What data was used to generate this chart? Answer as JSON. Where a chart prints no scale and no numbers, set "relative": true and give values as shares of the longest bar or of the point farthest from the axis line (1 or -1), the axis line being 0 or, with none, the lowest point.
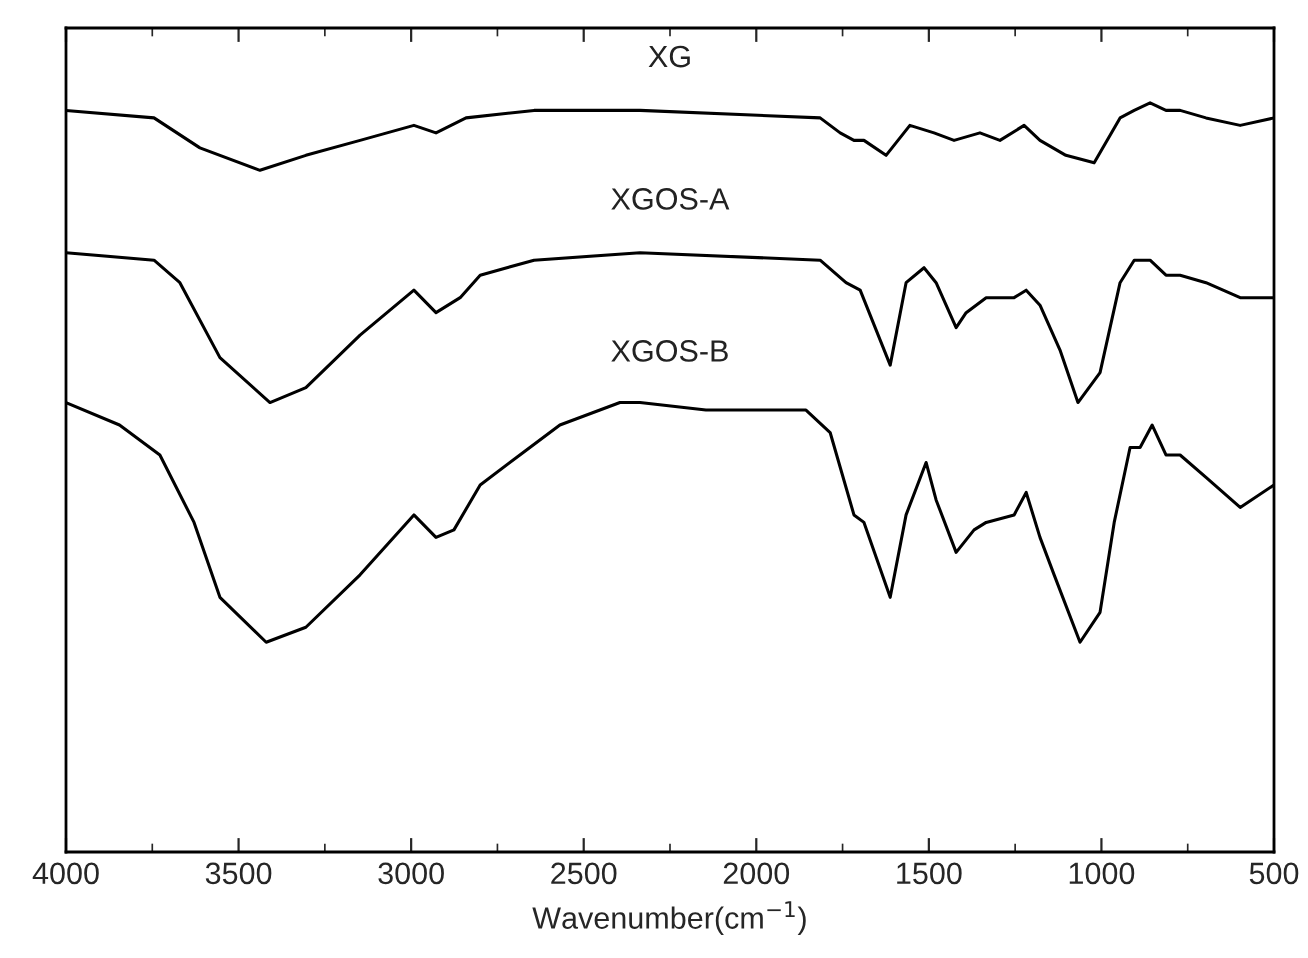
{
  "chart_data": {
    "type": "line",
    "relative": true,
    "xlabel": "Wavenumber(cm$^{−1}$)",
    "xlim": [
      4000,
      500
    ],
    "xticks": [
      4000,
      3500,
      3000,
      2500,
      2000,
      1500,
      1000,
      500
    ],
    "grid": false,
    "legend": false,
    "marker": "none",
    "line_style": "solid",
    "series": [
      {
        "name": "XG",
        "color": "#000000",
        "x": [
          4000,
          3745,
          3612,
          3438,
          3305,
          3148,
          2992,
          2928,
          2841,
          2644,
          2337,
          1815,
          1757,
          1717,
          1688,
          1624,
          1555,
          1485,
          1427,
          1352,
          1294,
          1224,
          1178,
          1103,
          1021,
          946,
          905,
          859,
          813,
          772,
          697,
          598,
          500
        ],
        "values": [
          0.99,
          0.98,
          0.94,
          0.91,
          0.93,
          0.95,
          0.97,
          0.96,
          0.98,
          0.99,
          0.99,
          0.98,
          0.96,
          0.95,
          0.95,
          0.93,
          0.97,
          0.96,
          0.95,
          0.96,
          0.95,
          0.97,
          0.95,
          0.93,
          0.92,
          0.98,
          0.99,
          1.0,
          0.99,
          0.99,
          0.98,
          0.97,
          0.98
        ]
      },
      {
        "name": "XGOS-A",
        "color": "#000000",
        "x": [
          4000,
          3745,
          3670,
          3554,
          3409,
          3305,
          3148,
          2992,
          2928,
          2858,
          2800,
          2644,
          2337,
          1815,
          1740,
          1699,
          1612,
          1566,
          1514,
          1479,
          1421,
          1392,
          1334,
          1253,
          1218,
          1178,
          1120,
          1068,
          1004,
          946,
          905,
          859,
          813,
          772,
          697,
          598,
          500
        ],
        "values": [
          0.8,
          0.79,
          0.76,
          0.66,
          0.6,
          0.62,
          0.69,
          0.75,
          0.72,
          0.74,
          0.77,
          0.79,
          0.8,
          0.79,
          0.76,
          0.75,
          0.65,
          0.76,
          0.78,
          0.76,
          0.7,
          0.72,
          0.74,
          0.74,
          0.75,
          0.73,
          0.67,
          0.6,
          0.64,
          0.76,
          0.79,
          0.79,
          0.77,
          0.77,
          0.76,
          0.74,
          0.74
        ]
      },
      {
        "name": "XGOS-B",
        "color": "#000000",
        "x": [
          4000,
          3845,
          3728,
          3629,
          3554,
          3420,
          3305,
          3148,
          2992,
          2928,
          2876,
          2800,
          2685,
          2569,
          2395,
          2337,
          2146,
          1856,
          1786,
          1717,
          1688,
          1612,
          1566,
          1508,
          1479,
          1421,
          1369,
          1334,
          1253,
          1218,
          1178,
          1137,
          1062,
          1004,
          963,
          917,
          888,
          853,
          813,
          772,
          697,
          598,
          500
        ],
        "values": [
          0.6,
          0.57,
          0.53,
          0.44,
          0.34,
          0.28,
          0.3,
          0.37,
          0.45,
          0.42,
          0.43,
          0.49,
          0.53,
          0.57,
          0.6,
          0.6,
          0.59,
          0.59,
          0.56,
          0.45,
          0.44,
          0.34,
          0.45,
          0.52,
          0.47,
          0.4,
          0.43,
          0.44,
          0.45,
          0.48,
          0.42,
          0.37,
          0.28,
          0.32,
          0.44,
          0.54,
          0.54,
          0.57,
          0.53,
          0.53,
          0.5,
          0.46,
          0.49
        ]
      }
    ]
  }
}
